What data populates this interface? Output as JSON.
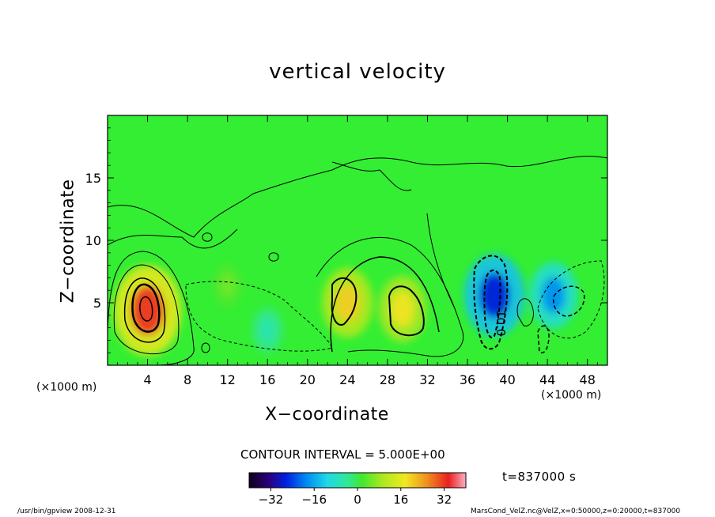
{
  "chart_data": {
    "type": "heatmap",
    "title": "vertical velocity",
    "xlabel": "X−coordinate",
    "ylabel": "Z−coordinate",
    "x_unit_left": "(×1000 m)",
    "x_unit_right": "(×1000 m)",
    "xlim": [
      0,
      50
    ],
    "ylim": [
      0,
      20
    ],
    "x_ticks": [
      4,
      8,
      12,
      16,
      20,
      24,
      28,
      32,
      36,
      40,
      44,
      48
    ],
    "y_ticks": [
      5,
      10,
      15
    ],
    "contour_interval": "CONTOUR INTERVAL = 5.000E+00",
    "contour_label": "10.0",
    "colorbar": {
      "min": -40,
      "max": 40,
      "ticks": [
        "−32",
        "−16",
        "0",
        "16",
        "32"
      ],
      "tick_values": [
        -32,
        -16,
        0,
        16,
        32
      ]
    },
    "features": [
      {
        "x": 4,
        "z": 4.4,
        "value": 32
      },
      {
        "x": 12,
        "z": 6.4,
        "value": 5
      },
      {
        "x": 16,
        "z": 2.8,
        "value": -6
      },
      {
        "x": 24,
        "z": 5,
        "value": 20
      },
      {
        "x": 29.5,
        "z": 4.5,
        "value": 18
      },
      {
        "x": 38.7,
        "z": 5.6,
        "value": -27
      },
      {
        "x": 44.6,
        "z": 5.6,
        "value": -18
      }
    ],
    "time_label": "t=837000 s",
    "footer_left": "/usr/bin/gpview   2008-12-31",
    "footer_right": "MarsCond_VelZ.nc@VelZ,x=0:50000,z=0:20000,t=837000"
  },
  "colors": {
    "background_field": "#33ee33",
    "positive_peak": "#ff5500",
    "negative_peak": "#0066ee"
  }
}
